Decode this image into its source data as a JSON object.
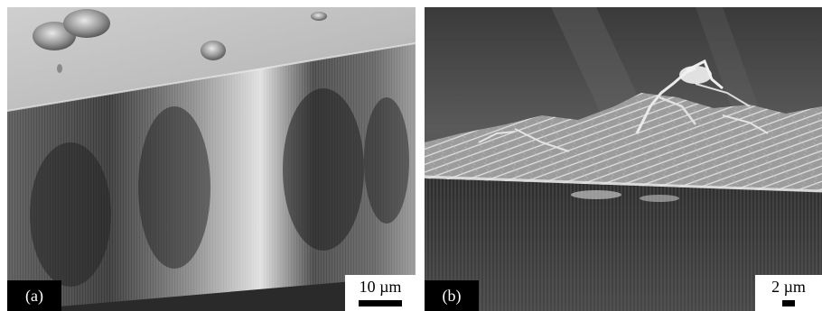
{
  "panels": [
    {
      "label": "(a)",
      "scale_bar_text": "10 µm"
    },
    {
      "label": "(b)",
      "scale_bar_text": "2 µm"
    }
  ],
  "colors": {
    "panel_a_surface": "#bdbdbd",
    "panel_a_pores_dark": "#2e2e2e",
    "panel_a_pores_light": "#e6e6e6",
    "panel_b_background": "#3c3c3c",
    "panel_b_crystals": "#d9d9d9",
    "label_background": "#000000",
    "label_text": "#ffffff",
    "scale_background": "#ffffff",
    "scale_text": "#000000"
  }
}
